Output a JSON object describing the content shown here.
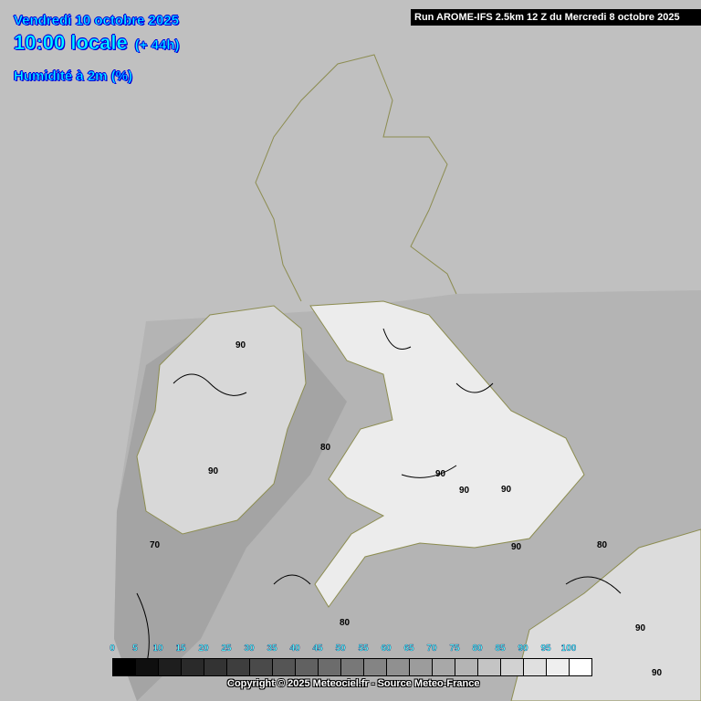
{
  "header": {
    "date": "Vendredi 10 octobre 2025",
    "time": "10:00 locale",
    "lead": "(+ 44h)",
    "parameter": "Humidité à 2m (%)"
  },
  "run_info": "Run AROME-IFS 2.5km 12 Z du Mercredi 8 octobre 2025",
  "contour_labels": [
    "90",
    "80",
    "90",
    "90",
    "90",
    "90",
    "70",
    "90",
    "80",
    "80",
    "90",
    "90"
  ],
  "colorbar": {
    "ticks": [
      "0",
      "5",
      "10",
      "15",
      "20",
      "25",
      "30",
      "35",
      "40",
      "45",
      "50",
      "55",
      "60",
      "65",
      "70",
      "75",
      "80",
      "85",
      "90",
      "95",
      "100"
    ],
    "colors": [
      "#000000",
      "#0f0f0f",
      "#1e1e1e",
      "#2a2a2a",
      "#333333",
      "#3e3e3e",
      "#4a4a4a",
      "#555555",
      "#616161",
      "#6c6c6c",
      "#787878",
      "#848484",
      "#909090",
      "#9c9c9c",
      "#a8a8a8",
      "#b4b4b4",
      "#c4c4c4",
      "#d2d2d2",
      "#e0e0e0",
      "#efefef",
      "#ffffff"
    ]
  },
  "copyright": "Copyright © 2025 Meteociel.fr - Source Meteo-France",
  "colors": {
    "background": "#c0c0c0",
    "coast": "#8c8c50",
    "title_text": "#00ffff",
    "title_outline": "#0000ff"
  }
}
